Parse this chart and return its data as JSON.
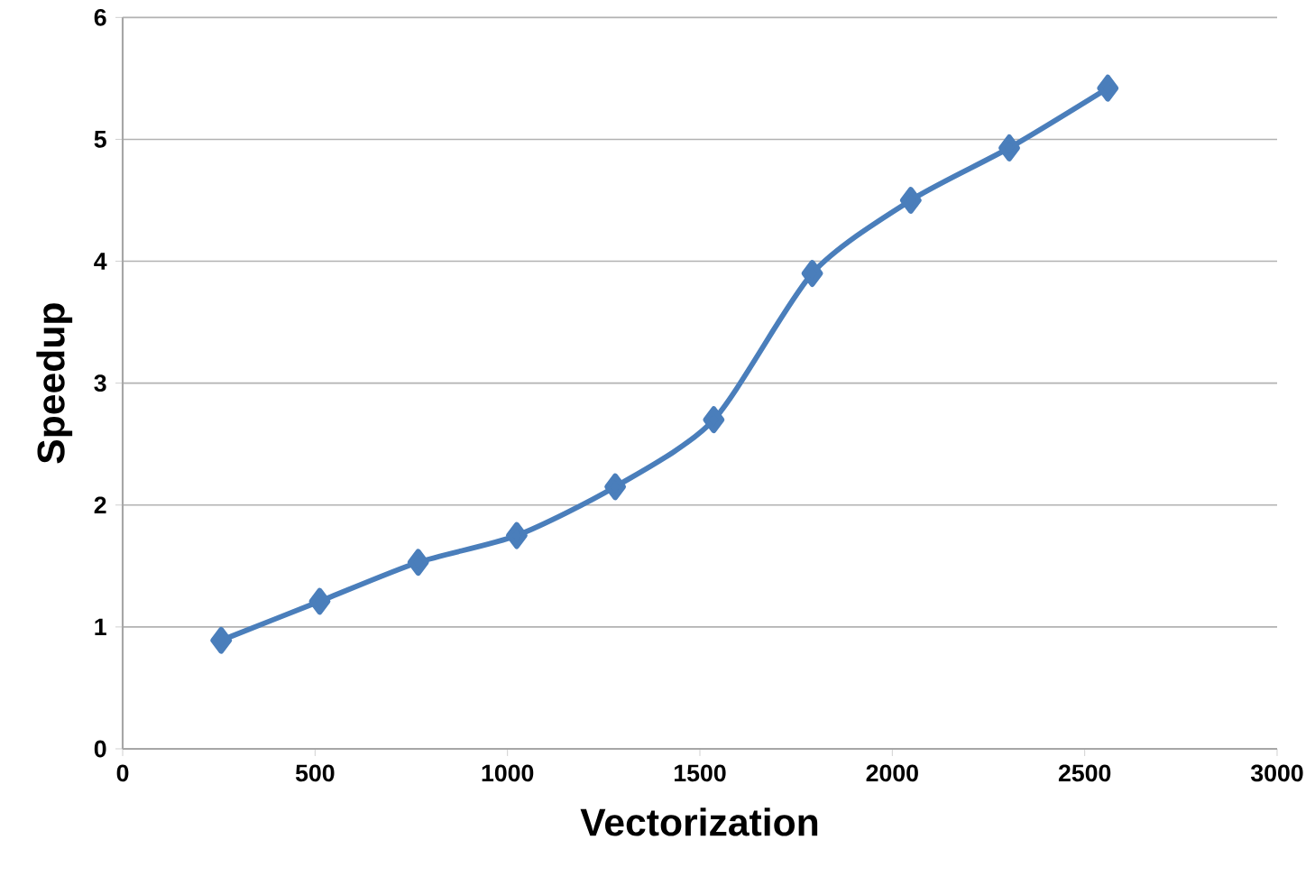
{
  "chart_data": {
    "type": "line",
    "xlabel": "Vectorization",
    "ylabel": "Speedup",
    "x": [
      256,
      512,
      768,
      1024,
      1280,
      1536,
      1792,
      2048,
      2304,
      2560
    ],
    "series": [
      {
        "color": "#4a7ebb",
        "values": [
          0.89,
          1.21,
          1.53,
          1.75,
          2.15,
          2.7,
          3.9,
          4.5,
          4.93,
          5.42
        ]
      }
    ],
    "xlim": [
      0,
      3000
    ],
    "ylim": [
      0,
      6
    ],
    "xticks": [
      0,
      500,
      1000,
      1500,
      2000,
      2500,
      3000
    ],
    "yticks": [
      0,
      1,
      2,
      3,
      4,
      5,
      6
    ],
    "grid": "y",
    "marker": "diamond",
    "line_style": "solid"
  }
}
